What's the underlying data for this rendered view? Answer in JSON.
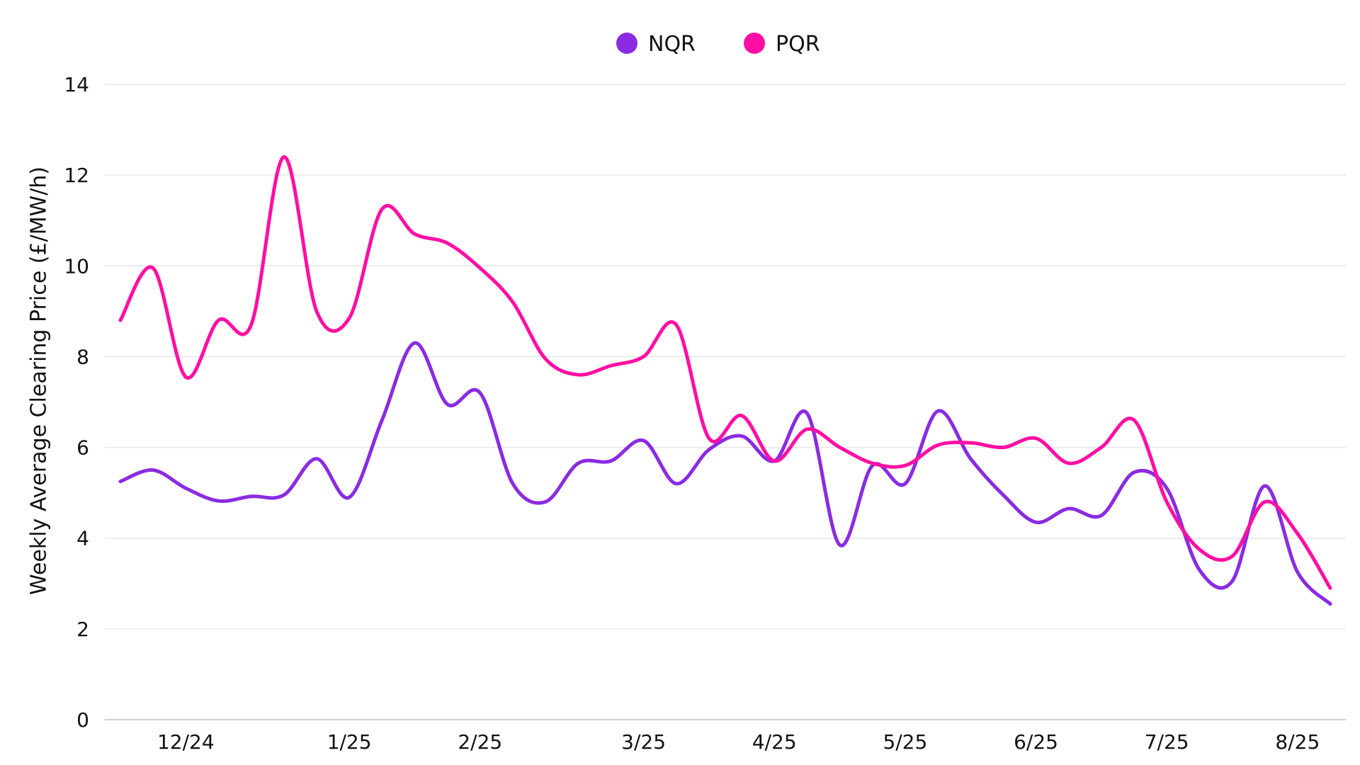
{
  "chart_data": {
    "type": "line",
    "title": "",
    "xlabel": "",
    "ylabel": "Weekly Average Clearing Price (£/MW/h)",
    "ylim": [
      0,
      14
    ],
    "yticks": [
      0,
      2,
      4,
      6,
      8,
      10,
      12,
      14
    ],
    "grid": true,
    "legend_position": "top-center",
    "x_tick_labels": [
      {
        "week": 2,
        "label": "12/24"
      },
      {
        "week": 7,
        "label": "1/25"
      },
      {
        "week": 11,
        "label": "2/25"
      },
      {
        "week": 16,
        "label": "3/25"
      },
      {
        "week": 20,
        "label": "4/25"
      },
      {
        "week": 24,
        "label": "5/25"
      },
      {
        "week": 28,
        "label": "6/25"
      },
      {
        "week": 32,
        "label": "7/25"
      },
      {
        "week": 36,
        "label": "8/25"
      }
    ],
    "x": [
      0,
      1,
      2,
      3,
      4,
      5,
      6,
      7,
      8,
      9,
      10,
      11,
      12,
      13,
      14,
      15,
      16,
      17,
      18,
      19,
      20,
      21,
      22,
      23,
      24,
      25,
      26,
      27,
      28,
      29,
      30,
      31,
      32,
      33,
      34,
      35,
      36,
      37
    ],
    "series": [
      {
        "name": "NQR",
        "color": "#8A2BE2",
        "values": [
          5.25,
          5.5,
          5.1,
          4.82,
          4.92,
          4.95,
          5.75,
          4.9,
          6.6,
          8.3,
          6.95,
          7.2,
          5.2,
          4.8,
          5.65,
          5.7,
          6.15,
          5.2,
          5.95,
          6.25,
          5.7,
          6.75,
          3.85,
          5.6,
          5.2,
          6.8,
          5.75,
          4.95,
          4.35,
          4.65,
          4.5,
          5.45,
          5.1,
          3.3,
          3.05,
          5.15,
          3.25,
          2.55
        ]
      },
      {
        "name": "PQR",
        "color": "#FF0FA3",
        "values": [
          8.8,
          9.95,
          7.55,
          8.8,
          8.7,
          12.4,
          9.0,
          8.85,
          11.25,
          10.7,
          10.5,
          9.95,
          9.2,
          7.95,
          7.6,
          7.8,
          8.0,
          8.7,
          6.2,
          6.7,
          5.7,
          6.4,
          6.0,
          5.65,
          5.6,
          6.05,
          6.1,
          6.0,
          6.2,
          5.65,
          6.0,
          6.6,
          4.8,
          3.75,
          3.6,
          4.8,
          4.1,
          2.9
        ]
      }
    ]
  }
}
